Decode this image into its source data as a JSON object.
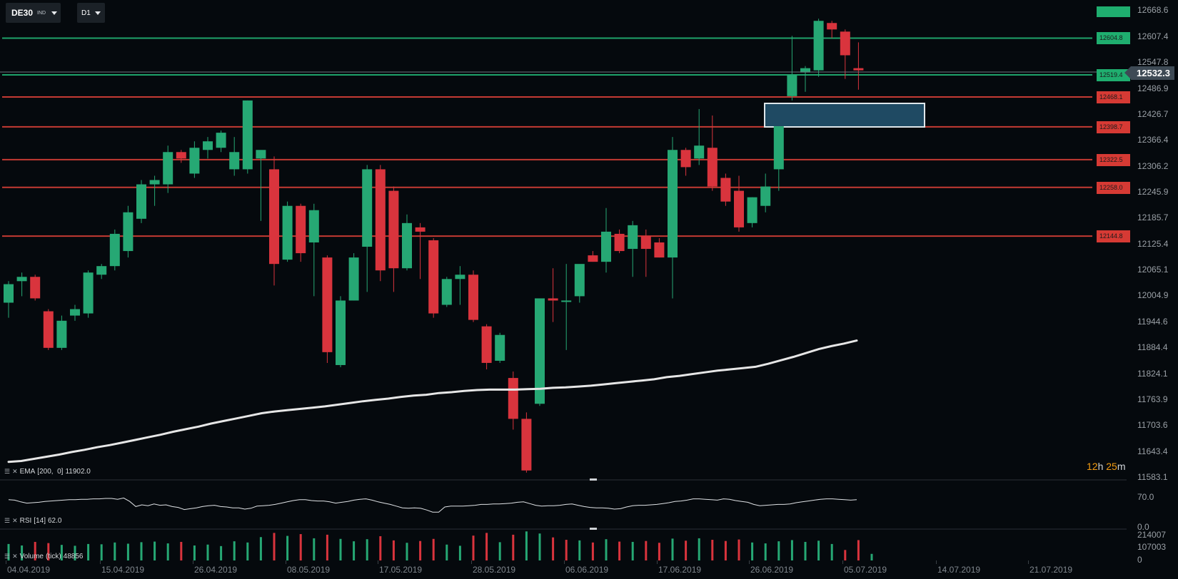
{
  "toolbar": {
    "symbol": "DE30",
    "symbol_type": "IND",
    "timeframe": "D1"
  },
  "price_axis": {
    "labels": [
      "12607.4",
      "12547.8",
      "12486.9",
      "12426.7",
      "12366.4",
      "12306.2",
      "12245.9",
      "12185.7",
      "12125.4",
      "12065.1",
      "12004.9",
      "11944.6",
      "11884.4",
      "11824.1",
      "11763.9",
      "11703.6",
      "11643.4",
      "11583.1"
    ],
    "current_price": "12532.3",
    "top_partial": "12668.6"
  },
  "levels": [
    {
      "label": "12604.8",
      "value": 12604.8,
      "kind": "support"
    },
    {
      "label": "12519.4",
      "value": 12519.4,
      "kind": "support"
    },
    {
      "label": "12468.1",
      "value": 12468.1,
      "kind": "resistance"
    },
    {
      "label": "12398.7",
      "value": 12398.7,
      "kind": "resistance"
    },
    {
      "label": "12322.5",
      "value": 12322.5,
      "kind": "resistance"
    },
    {
      "label": "12258.0",
      "value": 12258.0,
      "kind": "resistance"
    },
    {
      "label": "12144.8",
      "value": 12144.8,
      "kind": "resistance"
    }
  ],
  "date_axis": [
    "04.04.2019",
    "15.04.2019",
    "26.04.2019",
    "08.05.2019",
    "17.05.2019",
    "28.05.2019",
    "06.06.2019",
    "17.06.2019",
    "26.06.2019",
    "05.07.2019",
    "14.07.2019",
    "21.07.2019"
  ],
  "timer": {
    "hours": "12",
    "h_unit": "h",
    "minutes": "25",
    "m_unit": "m"
  },
  "indicators": {
    "ema": {
      "name": "EMA",
      "params": "[200,  0]",
      "value": "11902.0"
    },
    "rsi": {
      "name": "RSI",
      "params": "[14]",
      "value": "62.0",
      "axis": [
        "70.0",
        "0.0"
      ]
    },
    "volume": {
      "name": "Volume",
      "params": "(tick)",
      "value": "48856",
      "axis": [
        "214007",
        "107003",
        "0"
      ]
    }
  },
  "colors": {
    "up": "#26a874",
    "down": "#d9343d",
    "background": "#05090d",
    "support_line": "#1ea36a",
    "resistance_line": "#c53a33",
    "ema": "#e6e6e6",
    "zone": "#1f4a63"
  },
  "chart_data": {
    "type": "candlestick",
    "price_range": [
      11583.1,
      12668.6
    ],
    "candles": [
      {
        "o": 11990,
        "h": 12040,
        "l": 11955,
        "c": 12033
      },
      {
        "o": 12040,
        "h": 12060,
        "l": 12005,
        "c": 12050
      },
      {
        "o": 12050,
        "h": 12055,
        "l": 11995,
        "c": 12000
      },
      {
        "o": 11970,
        "h": 11975,
        "l": 11880,
        "c": 11885
      },
      {
        "o": 11885,
        "h": 11960,
        "l": 11880,
        "c": 11948
      },
      {
        "o": 11960,
        "h": 11985,
        "l": 11948,
        "c": 11975
      },
      {
        "o": 11965,
        "h": 12065,
        "l": 11955,
        "c": 12060
      },
      {
        "o": 12055,
        "h": 12080,
        "l": 12045,
        "c": 12075
      },
      {
        "o": 12075,
        "h": 12160,
        "l": 12065,
        "c": 12150
      },
      {
        "o": 12110,
        "h": 12215,
        "l": 12095,
        "c": 12200
      },
      {
        "o": 12185,
        "h": 12275,
        "l": 12175,
        "c": 12265
      },
      {
        "o": 12265,
        "h": 12285,
        "l": 12215,
        "c": 12275
      },
      {
        "o": 12265,
        "h": 12355,
        "l": 12245,
        "c": 12340
      },
      {
        "o": 12340,
        "h": 12345,
        "l": 12315,
        "c": 12325
      },
      {
        "o": 12290,
        "h": 12365,
        "l": 12280,
        "c": 12350
      },
      {
        "o": 12345,
        "h": 12375,
        "l": 12325,
        "c": 12365
      },
      {
        "o": 12350,
        "h": 12390,
        "l": 12340,
        "c": 12385
      },
      {
        "o": 12300,
        "h": 12375,
        "l": 12285,
        "c": 12340
      },
      {
        "o": 12300,
        "h": 12460,
        "l": 12290,
        "c": 12460
      },
      {
        "o": 12325,
        "h": 12340,
        "l": 12180,
        "c": 12345
      },
      {
        "o": 12300,
        "h": 12330,
        "l": 12030,
        "c": 12080
      },
      {
        "o": 12090,
        "h": 12225,
        "l": 12085,
        "c": 12215
      },
      {
        "o": 12215,
        "h": 12220,
        "l": 12085,
        "c": 12105
      },
      {
        "o": 12130,
        "h": 12220,
        "l": 12005,
        "c": 12205
      },
      {
        "o": 12095,
        "h": 12100,
        "l": 11850,
        "c": 11875
      },
      {
        "o": 11845,
        "h": 12005,
        "l": 11840,
        "c": 11995
      },
      {
        "o": 11995,
        "h": 12105,
        "l": 11995,
        "c": 12095
      },
      {
        "o": 12120,
        "h": 12310,
        "l": 12015,
        "c": 12300
      },
      {
        "o": 12300,
        "h": 12310,
        "l": 12040,
        "c": 12065
      },
      {
        "o": 12250,
        "h": 12260,
        "l": 12015,
        "c": 12070
      },
      {
        "o": 12070,
        "h": 12195,
        "l": 12065,
        "c": 12175
      },
      {
        "o": 12165,
        "h": 12175,
        "l": 12045,
        "c": 12155
      },
      {
        "o": 12135,
        "h": 12140,
        "l": 11955,
        "c": 11965
      },
      {
        "o": 11985,
        "h": 12050,
        "l": 11980,
        "c": 12045
      },
      {
        "o": 12045,
        "h": 12075,
        "l": 11985,
        "c": 12055
      },
      {
        "o": 12055,
        "h": 12065,
        "l": 11945,
        "c": 11950
      },
      {
        "o": 11935,
        "h": 11940,
        "l": 11835,
        "c": 11850
      },
      {
        "o": 11855,
        "h": 11920,
        "l": 11850,
        "c": 11915
      },
      {
        "o": 11815,
        "h": 11830,
        "l": 11695,
        "c": 11720
      },
      {
        "o": 11720,
        "h": 11735,
        "l": 11595,
        "c": 11600
      },
      {
        "o": 11755,
        "h": 12000,
        "l": 11750,
        "c": 12000
      },
      {
        "o": 12000,
        "h": 12070,
        "l": 11945,
        "c": 11995
      },
      {
        "o": 11995,
        "h": 12080,
        "l": 11880,
        "c": 11995
      },
      {
        "o": 12005,
        "h": 12075,
        "l": 11990,
        "c": 12080
      },
      {
        "o": 12100,
        "h": 12110,
        "l": 12085,
        "c": 12085
      },
      {
        "o": 12085,
        "h": 12210,
        "l": 12060,
        "c": 12155
      },
      {
        "o": 12150,
        "h": 12160,
        "l": 12105,
        "c": 12110
      },
      {
        "o": 12115,
        "h": 12180,
        "l": 12050,
        "c": 12170
      },
      {
        "o": 12145,
        "h": 12160,
        "l": 12050,
        "c": 12115
      },
      {
        "o": 12130,
        "h": 12140,
        "l": 12095,
        "c": 12095
      },
      {
        "o": 12095,
        "h": 12375,
        "l": 12000,
        "c": 12345
      },
      {
        "o": 12345,
        "h": 12350,
        "l": 12285,
        "c": 12305
      },
      {
        "o": 12325,
        "h": 12440,
        "l": 12310,
        "c": 12355
      },
      {
        "o": 12350,
        "h": 12425,
        "l": 12250,
        "c": 12260
      },
      {
        "o": 12280,
        "h": 12290,
        "l": 12215,
        "c": 12225
      },
      {
        "o": 12250,
        "h": 12285,
        "l": 12155,
        "c": 12165
      },
      {
        "o": 12175,
        "h": 12235,
        "l": 12165,
        "c": 12235
      },
      {
        "o": 12215,
        "h": 12290,
        "l": 12200,
        "c": 12260
      },
      {
        "o": 12300,
        "h": 12400,
        "l": 12250,
        "c": 12400
      },
      {
        "o": 12470,
        "h": 12610,
        "l": 12460,
        "c": 12520
      },
      {
        "o": 12525,
        "h": 12540,
        "l": 12480,
        "c": 12535
      },
      {
        "o": 12530,
        "h": 12650,
        "l": 12515,
        "c": 12645
      },
      {
        "o": 12640,
        "h": 12645,
        "l": 12605,
        "c": 12625
      },
      {
        "o": 12620,
        "h": 12625,
        "l": 12510,
        "c": 12565
      },
      {
        "o": 12535,
        "h": 12595,
        "l": 12485,
        "c": 12530
      }
    ],
    "ema200_points": [
      11620,
      11622,
      11627,
      11632,
      11637,
      11643,
      11648,
      11654,
      11659,
      11665,
      11671,
      11677,
      11683,
      11690,
      11696,
      11702,
      11709,
      11715,
      11721,
      11727,
      11733,
      11737,
      11740,
      11743,
      11746,
      11749,
      11753,
      11757,
      11761,
      11764,
      11767,
      11771,
      11774,
      11776,
      11780,
      11782,
      11785,
      11787,
      11788,
      11788,
      11788,
      11789,
      11790,
      11792,
      11793,
      11795,
      11797,
      11800,
      11803,
      11806,
      11809,
      11812,
      11817,
      11820,
      11824,
      11828,
      11832,
      11835,
      11838,
      11841,
      11848,
      11856,
      11864,
      11873,
      11882,
      11889,
      11895,
      11902
    ],
    "rsi_points": [
      62,
      61,
      57,
      54,
      55,
      56,
      58,
      59,
      60,
      61,
      62,
      62,
      63,
      63,
      64,
      64,
      65,
      65,
      63,
      66,
      58,
      46,
      50,
      48,
      52,
      49,
      50,
      46,
      44,
      39,
      41,
      43,
      46,
      48,
      49,
      46,
      45,
      43,
      43,
      40,
      42,
      47,
      48,
      49,
      51,
      54,
      57,
      60,
      62,
      62,
      60,
      59,
      59,
      57,
      54,
      56,
      58,
      61,
      63,
      64,
      61,
      57,
      54,
      51,
      47,
      43,
      42,
      43,
      42,
      38,
      33,
      33,
      45,
      47,
      47,
      47,
      48,
      49,
      51,
      51,
      52,
      52,
      53,
      54,
      56,
      57,
      53,
      49,
      47,
      48,
      48,
      49,
      51,
      52,
      49,
      46,
      44,
      43,
      43,
      42,
      40,
      41,
      45,
      48,
      49,
      49,
      50,
      51,
      53,
      55,
      58,
      59,
      61,
      64,
      64,
      63,
      62,
      61,
      64,
      63,
      60,
      58,
      56,
      51,
      48,
      49,
      50,
      51,
      51,
      52,
      55,
      57,
      59,
      61,
      63,
      64,
      64,
      63,
      62,
      61,
      62
    ],
    "volume_bars": [
      {
        "v": 0.55,
        "d": "up"
      },
      {
        "v": 0.5,
        "d": "up"
      },
      {
        "v": 0.62,
        "d": "down"
      },
      {
        "v": 0.58,
        "d": "down"
      },
      {
        "v": 0.52,
        "d": "up"
      },
      {
        "v": 0.49,
        "d": "up"
      },
      {
        "v": 0.55,
        "d": "up"
      },
      {
        "v": 0.54,
        "d": "up"
      },
      {
        "v": 0.6,
        "d": "up"
      },
      {
        "v": 0.56,
        "d": "up"
      },
      {
        "v": 0.61,
        "d": "up"
      },
      {
        "v": 0.63,
        "d": "up"
      },
      {
        "v": 0.57,
        "d": "up"
      },
      {
        "v": 0.62,
        "d": "down"
      },
      {
        "v": 0.5,
        "d": "up"
      },
      {
        "v": 0.53,
        "d": "up"
      },
      {
        "v": 0.48,
        "d": "up"
      },
      {
        "v": 0.64,
        "d": "up"
      },
      {
        "v": 0.6,
        "d": "up"
      },
      {
        "v": 0.78,
        "d": "up"
      },
      {
        "v": 0.92,
        "d": "down"
      },
      {
        "v": 0.82,
        "d": "up"
      },
      {
        "v": 0.88,
        "d": "down"
      },
      {
        "v": 0.74,
        "d": "up"
      },
      {
        "v": 0.86,
        "d": "down"
      },
      {
        "v": 0.72,
        "d": "up"
      },
      {
        "v": 0.64,
        "d": "up"
      },
      {
        "v": 0.71,
        "d": "up"
      },
      {
        "v": 0.81,
        "d": "down"
      },
      {
        "v": 0.67,
        "d": "down"
      },
      {
        "v": 0.59,
        "d": "up"
      },
      {
        "v": 0.65,
        "d": "down"
      },
      {
        "v": 0.72,
        "d": "down"
      },
      {
        "v": 0.53,
        "d": "up"
      },
      {
        "v": 0.49,
        "d": "up"
      },
      {
        "v": 0.83,
        "d": "down"
      },
      {
        "v": 0.92,
        "d": "down"
      },
      {
        "v": 0.61,
        "d": "up"
      },
      {
        "v": 0.86,
        "d": "down"
      },
      {
        "v": 0.97,
        "d": "up"
      },
      {
        "v": 0.9,
        "d": "up"
      },
      {
        "v": 0.77,
        "d": "down"
      },
      {
        "v": 0.69,
        "d": "down"
      },
      {
        "v": 0.67,
        "d": "up"
      },
      {
        "v": 0.6,
        "d": "down"
      },
      {
        "v": 0.71,
        "d": "up"
      },
      {
        "v": 0.63,
        "d": "down"
      },
      {
        "v": 0.62,
        "d": "up"
      },
      {
        "v": 0.65,
        "d": "down"
      },
      {
        "v": 0.59,
        "d": "down"
      },
      {
        "v": 0.73,
        "d": "up"
      },
      {
        "v": 0.66,
        "d": "down"
      },
      {
        "v": 0.74,
        "d": "up"
      },
      {
        "v": 0.69,
        "d": "down"
      },
      {
        "v": 0.65,
        "d": "down"
      },
      {
        "v": 0.7,
        "d": "down"
      },
      {
        "v": 0.6,
        "d": "up"
      },
      {
        "v": 0.57,
        "d": "up"
      },
      {
        "v": 0.64,
        "d": "up"
      },
      {
        "v": 0.68,
        "d": "up"
      },
      {
        "v": 0.62,
        "d": "up"
      },
      {
        "v": 0.66,
        "d": "up"
      },
      {
        "v": 0.55,
        "d": "up"
      },
      {
        "v": 0.35,
        "d": "down"
      },
      {
        "v": 0.68,
        "d": "down"
      },
      {
        "v": 0.22,
        "d": "up"
      }
    ]
  }
}
